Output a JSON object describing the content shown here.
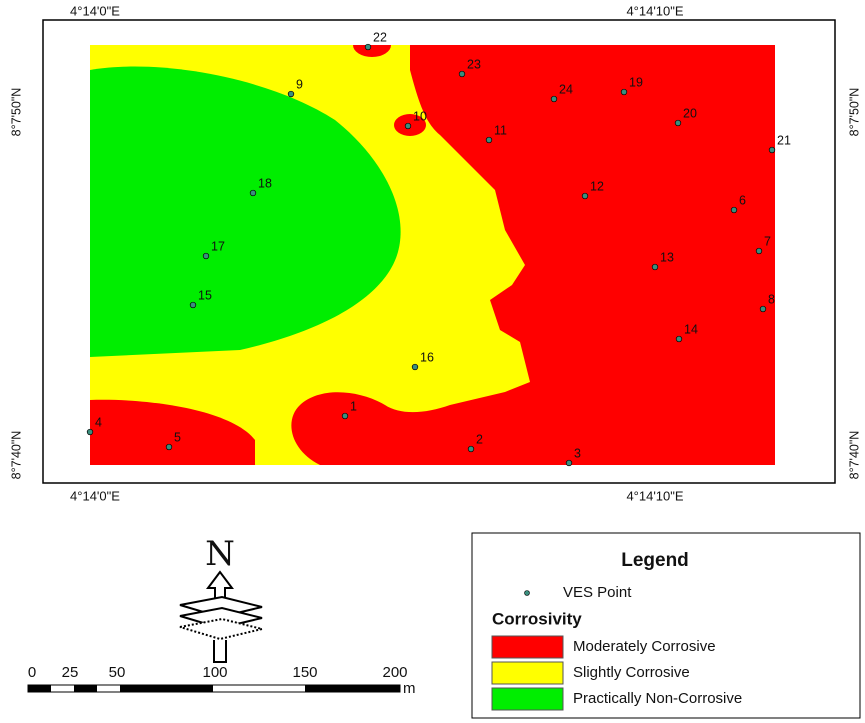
{
  "coordinates": {
    "top": [
      "4°14'0\"E",
      "4°14'10\"E"
    ],
    "bottom": [
      "4°14'0\"E",
      "4°14'10\"E"
    ],
    "left": [
      "8°7'50\"N",
      "8°7'40\"N"
    ],
    "right": [
      "8°7'50\"N",
      "8°7'40\"N"
    ]
  },
  "ves_points": [
    "1",
    "2",
    "3",
    "4",
    "5",
    "6",
    "7",
    "8",
    "9",
    "10",
    "11",
    "12",
    "13",
    "14",
    "15",
    "16",
    "17",
    "18",
    "19",
    "20",
    "21",
    "22",
    "23",
    "24"
  ],
  "north": "N",
  "legend": {
    "title": "Legend",
    "point": "VES Point",
    "heading": "Corrosivity",
    "items": [
      "Moderately Corrosive",
      "Slightly Corrosive",
      "Practically Non-Corrosive"
    ]
  },
  "scale_bar": {
    "labels": [
      "0",
      "25",
      "50",
      "100",
      "150",
      "200"
    ],
    "unit": "m"
  }
}
